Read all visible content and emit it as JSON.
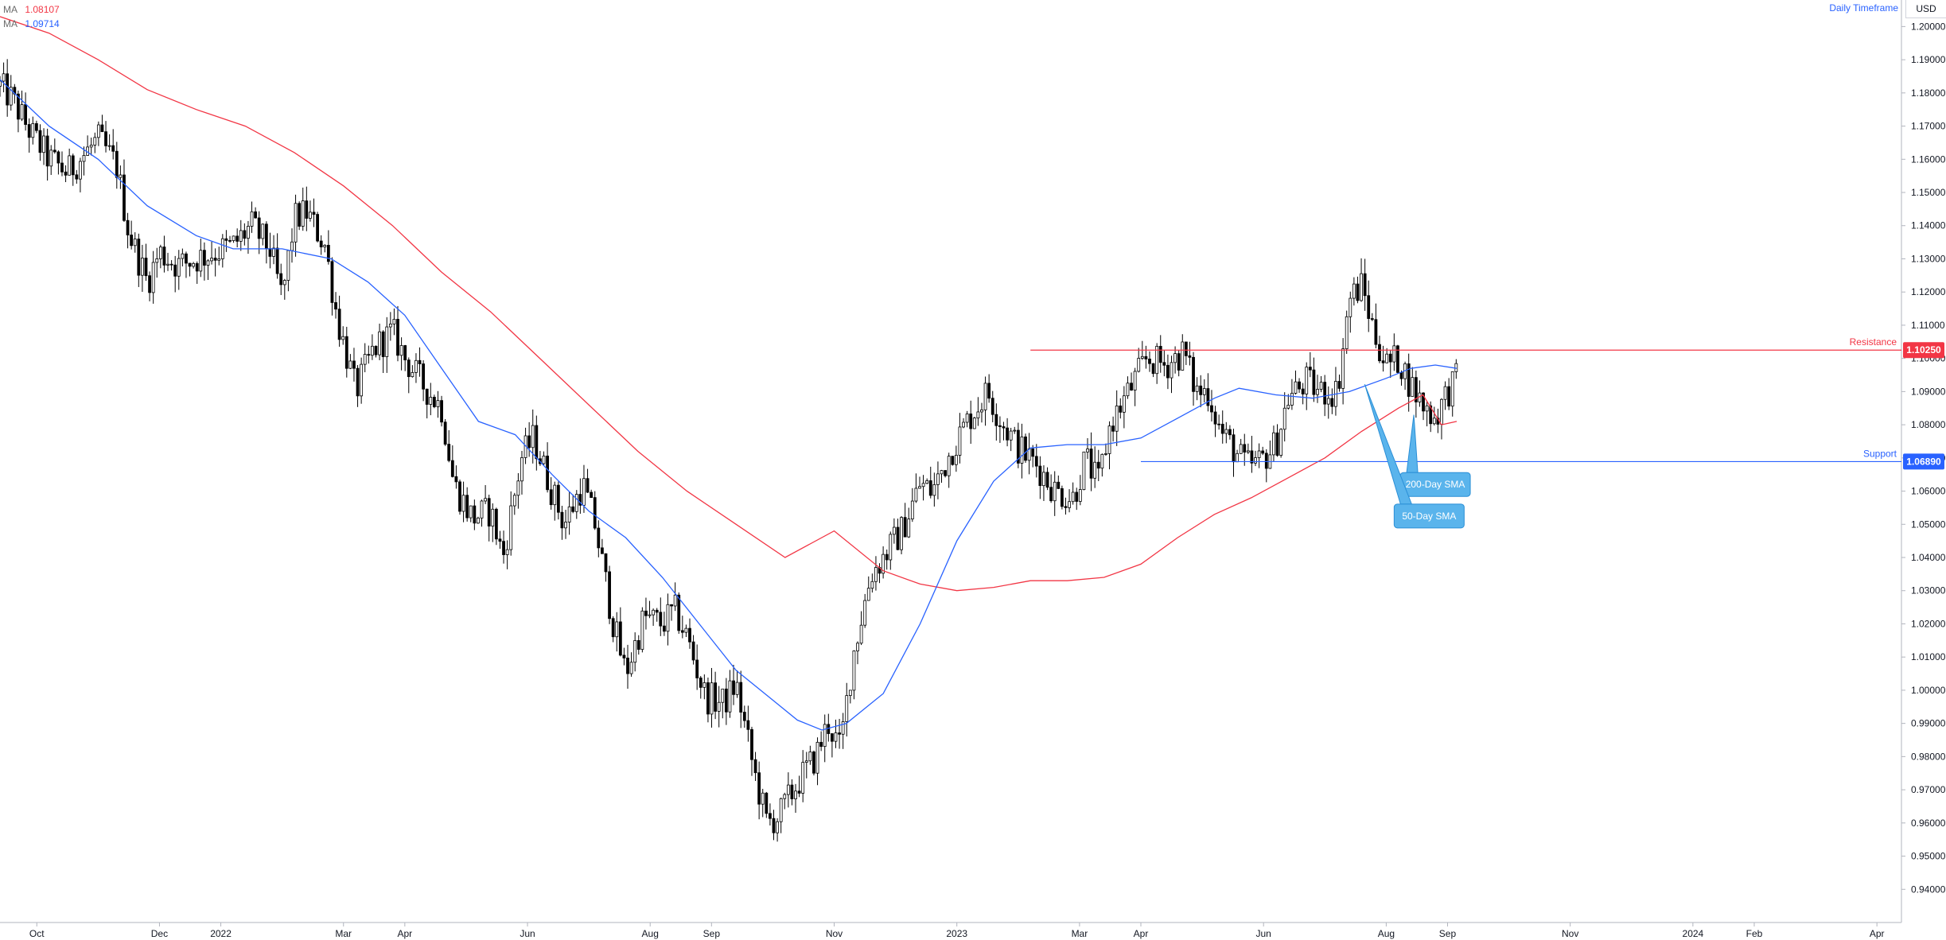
{
  "legend": {
    "ma_red": {
      "label": "MA",
      "value": "1.08107",
      "color": "#f23645"
    },
    "ma_blue": {
      "label": "MA",
      "value": "1.09714",
      "color": "#2962ff"
    }
  },
  "header": {
    "timeframe": "Daily Timeframe",
    "currency": "USD"
  },
  "chart_data": {
    "type": "candlestick",
    "ylim": [
      0.93,
      1.208
    ],
    "y_ticks": [
      "0.94000",
      "0.95000",
      "0.96000",
      "0.97000",
      "0.98000",
      "0.99000",
      "1.00000",
      "1.01000",
      "1.02000",
      "1.03000",
      "1.04000",
      "1.05000",
      "1.06000",
      "1.07000",
      "1.08000",
      "1.09000",
      "1.10000",
      "1.11000",
      "1.12000",
      "1.13000",
      "1.14000",
      "1.15000",
      "1.16000",
      "1.17000",
      "1.18000",
      "1.19000",
      "1.20000"
    ],
    "x_ticks": [
      {
        "label": "Oct",
        "x": 0.6
      },
      {
        "label": "Dec",
        "x": 2.6
      },
      {
        "label": "2022",
        "x": 3.6
      },
      {
        "label": "Mar",
        "x": 5.6
      },
      {
        "label": "Apr",
        "x": 6.6
      },
      {
        "label": "Jun",
        "x": 8.6
      },
      {
        "label": "Aug",
        "x": 10.6
      },
      {
        "label": "Sep",
        "x": 11.6
      },
      {
        "label": "Nov",
        "x": 13.6
      },
      {
        "label": "2023",
        "x": 15.6
      },
      {
        "label": "Mar",
        "x": 17.6
      },
      {
        "label": "Apr",
        "x": 18.6
      },
      {
        "label": "Jun",
        "x": 20.6
      },
      {
        "label": "Aug",
        "x": 22.6
      },
      {
        "label": "Sep",
        "x": 23.6
      },
      {
        "label": "Nov",
        "x": 25.6
      },
      {
        "label": "2024",
        "x": 27.6
      },
      {
        "label": "Feb",
        "x": 28.6
      },
      {
        "label": "Apr",
        "x": 30.6
      }
    ],
    "x_range": [
      0,
      31
    ],
    "price_path": [
      [
        0.0,
        1.182
      ],
      [
        0.2,
        1.178
      ],
      [
        0.5,
        1.168
      ],
      [
        0.8,
        1.16
      ],
      [
        1.1,
        1.156
      ],
      [
        1.4,
        1.162
      ],
      [
        1.6,
        1.166
      ],
      [
        1.9,
        1.158
      ],
      [
        2.1,
        1.138
      ],
      [
        2.4,
        1.123
      ],
      [
        2.6,
        1.132
      ],
      [
        2.9,
        1.128
      ],
      [
        3.2,
        1.13
      ],
      [
        3.5,
        1.132
      ],
      [
        3.8,
        1.134
      ],
      [
        4.1,
        1.14
      ],
      [
        4.4,
        1.133
      ],
      [
        4.6,
        1.118
      ],
      [
        4.8,
        1.142
      ],
      [
        5.0,
        1.144
      ],
      [
        5.3,
        1.134
      ],
      [
        5.5,
        1.112
      ],
      [
        5.8,
        1.09
      ],
      [
        6.1,
        1.103
      ],
      [
        6.4,
        1.108
      ],
      [
        6.6,
        1.1
      ],
      [
        6.9,
        1.092
      ],
      [
        7.2,
        1.085
      ],
      [
        7.4,
        1.062
      ],
      [
        7.7,
        1.052
      ],
      [
        8.0,
        1.054
      ],
      [
        8.2,
        1.04
      ],
      [
        8.5,
        1.07
      ],
      [
        8.7,
        1.076
      ],
      [
        9.0,
        1.06
      ],
      [
        9.2,
        1.05
      ],
      [
        9.5,
        1.062
      ],
      [
        9.7,
        1.05
      ],
      [
        10.0,
        1.02
      ],
      [
        10.2,
        1.005
      ],
      [
        10.5,
        1.022
      ],
      [
        10.8,
        1.02
      ],
      [
        11.0,
        1.024
      ],
      [
        11.2,
        1.016
      ],
      [
        11.5,
        0.998
      ],
      [
        11.8,
        0.996
      ],
      [
        12.0,
        1.002
      ],
      [
        12.3,
        0.975
      ],
      [
        12.5,
        0.96
      ],
      [
        12.7,
        0.962
      ],
      [
        13.0,
        0.972
      ],
      [
        13.3,
        0.98
      ],
      [
        13.5,
        0.99
      ],
      [
        13.7,
        0.982
      ],
      [
        13.9,
        1.01
      ],
      [
        14.2,
        1.035
      ],
      [
        14.4,
        1.04
      ],
      [
        14.7,
        1.048
      ],
      [
        15.0,
        1.062
      ],
      [
        15.2,
        1.06
      ],
      [
        15.5,
        1.072
      ],
      [
        15.8,
        1.082
      ],
      [
        16.1,
        1.09
      ],
      [
        16.3,
        1.082
      ],
      [
        16.6,
        1.073
      ],
      [
        16.9,
        1.068
      ],
      [
        17.2,
        1.06
      ],
      [
        17.5,
        1.058
      ],
      [
        17.7,
        1.07
      ],
      [
        17.9,
        1.062
      ],
      [
        18.1,
        1.08
      ],
      [
        18.4,
        1.09
      ],
      [
        18.7,
        1.1
      ],
      [
        19.0,
        1.098
      ],
      [
        19.3,
        1.102
      ],
      [
        19.5,
        1.09
      ],
      [
        19.7,
        1.09
      ],
      [
        19.9,
        1.078
      ],
      [
        20.1,
        1.073
      ],
      [
        20.3,
        1.068
      ],
      [
        20.5,
        1.068
      ],
      [
        20.8,
        1.074
      ],
      [
        21.0,
        1.088
      ],
      [
        21.3,
        1.093
      ],
      [
        21.5,
        1.09
      ],
      [
        21.8,
        1.09
      ],
      [
        22.0,
        1.118
      ],
      [
        22.2,
        1.122
      ],
      [
        22.4,
        1.108
      ],
      [
        22.6,
        1.098
      ],
      [
        22.8,
        1.1
      ],
      [
        23.0,
        1.092
      ],
      [
        23.2,
        1.086
      ],
      [
        23.4,
        1.082
      ],
      [
        23.6,
        1.09
      ],
      [
        23.75,
        1.094
      ]
    ],
    "ma50_path": [
      [
        0.0,
        1.184
      ],
      [
        0.8,
        1.17
      ],
      [
        1.6,
        1.16
      ],
      [
        2.4,
        1.146
      ],
      [
        3.2,
        1.137
      ],
      [
        3.8,
        1.133
      ],
      [
        4.6,
        1.133
      ],
      [
        5.4,
        1.13
      ],
      [
        6.0,
        1.123
      ],
      [
        6.6,
        1.113
      ],
      [
        7.2,
        1.097
      ],
      [
        7.8,
        1.081
      ],
      [
        8.4,
        1.077
      ],
      [
        9.0,
        1.065
      ],
      [
        9.6,
        1.054
      ],
      [
        10.2,
        1.046
      ],
      [
        10.8,
        1.034
      ],
      [
        11.4,
        1.02
      ],
      [
        12.0,
        1.006
      ],
      [
        12.6,
        0.997
      ],
      [
        13.0,
        0.991
      ],
      [
        13.4,
        0.988
      ],
      [
        13.8,
        0.99
      ],
      [
        14.4,
        0.999
      ],
      [
        15.0,
        1.02
      ],
      [
        15.6,
        1.045
      ],
      [
        16.2,
        1.063
      ],
      [
        16.8,
        1.073
      ],
      [
        17.4,
        1.074
      ],
      [
        18.0,
        1.074
      ],
      [
        18.6,
        1.076
      ],
      [
        19.2,
        1.082
      ],
      [
        19.8,
        1.088
      ],
      [
        20.2,
        1.091
      ],
      [
        20.8,
        1.089
      ],
      [
        21.4,
        1.088
      ],
      [
        22.0,
        1.09
      ],
      [
        22.6,
        1.094
      ],
      [
        23.0,
        1.097
      ],
      [
        23.4,
        1.098
      ],
      [
        23.75,
        1.097
      ]
    ],
    "ma200_path": [
      [
        0.0,
        1.203
      ],
      [
        0.8,
        1.198
      ],
      [
        1.6,
        1.19
      ],
      [
        2.4,
        1.181
      ],
      [
        3.2,
        1.175
      ],
      [
        4.0,
        1.17
      ],
      [
        4.8,
        1.162
      ],
      [
        5.6,
        1.152
      ],
      [
        6.4,
        1.14
      ],
      [
        7.2,
        1.126
      ],
      [
        8.0,
        1.114
      ],
      [
        8.8,
        1.1
      ],
      [
        9.6,
        1.086
      ],
      [
        10.4,
        1.072
      ],
      [
        11.2,
        1.06
      ],
      [
        12.0,
        1.05
      ],
      [
        12.8,
        1.04
      ],
      [
        13.6,
        1.048
      ],
      [
        14.4,
        1.036
      ],
      [
        15.0,
        1.032
      ],
      [
        15.6,
        1.03
      ],
      [
        16.2,
        1.031
      ],
      [
        16.8,
        1.033
      ],
      [
        17.4,
        1.033
      ],
      [
        18.0,
        1.034
      ],
      [
        18.6,
        1.038
      ],
      [
        19.2,
        1.046
      ],
      [
        19.8,
        1.053
      ],
      [
        20.4,
        1.058
      ],
      [
        21.0,
        1.064
      ],
      [
        21.6,
        1.07
      ],
      [
        22.2,
        1.078
      ],
      [
        22.8,
        1.085
      ],
      [
        23.2,
        1.089
      ],
      [
        23.5,
        1.08
      ],
      [
        23.75,
        1.081
      ]
    ],
    "levels": [
      {
        "name": "Resistance",
        "value": "1.10250",
        "y": 1.1025,
        "x_start": 16.8,
        "color": "#f23645"
      },
      {
        "name": "Support",
        "value": "1.06890",
        "y": 1.0689,
        "x_start": 18.6,
        "color": "#2962ff"
      }
    ],
    "callouts": [
      {
        "text": "200-Day SMA",
        "x": 23.4,
        "y": 1.062,
        "target_x": 23.05,
        "target_y": 1.083
      },
      {
        "text": "50-Day SMA",
        "x": 23.3,
        "y": 1.0525,
        "target_x": 22.25,
        "target_y": 1.0922
      }
    ]
  }
}
